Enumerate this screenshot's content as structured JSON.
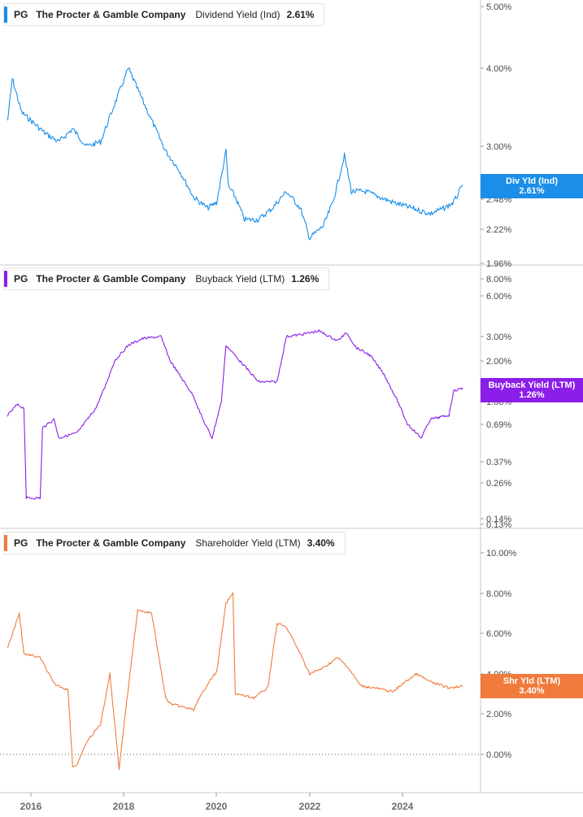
{
  "chart_data": [
    {
      "type": "line",
      "legend": {
        "ticker": "PG",
        "company": "The Procter & Gamble Company",
        "metric": "Dividend Yield (Ind)",
        "value": "2.61%"
      },
      "flag": {
        "label": "Div Yld (Ind)",
        "value": "2.61%"
      },
      "color": "#1a8ee8",
      "y_scale": "log",
      "y_ticks": [
        "5.00%",
        "4.00%",
        "3.00%",
        "2.48%",
        "2.22%",
        "1.96%"
      ],
      "x": [
        2015.5,
        2015.6,
        2015.8,
        2016.0,
        2016.3,
        2016.6,
        2016.9,
        2017.2,
        2017.5,
        2017.8,
        2018.1,
        2018.3,
        2018.6,
        2018.9,
        2019.2,
        2019.5,
        2019.8,
        2020.0,
        2020.2,
        2020.25,
        2020.4,
        2020.6,
        2020.9,
        2021.2,
        2021.5,
        2021.8,
        2022.0,
        2022.3,
        2022.5,
        2022.75,
        2022.9,
        2023.2,
        2023.5,
        2023.8,
        2024.2,
        2024.6,
        2024.9,
        2025.1,
        2025.3
      ],
      "y": [
        3.3,
        3.85,
        3.4,
        3.3,
        3.15,
        3.05,
        3.2,
        3.0,
        3.05,
        3.5,
        4.0,
        3.7,
        3.3,
        2.95,
        2.75,
        2.5,
        2.4,
        2.45,
        2.95,
        2.6,
        2.5,
        2.3,
        2.3,
        2.4,
        2.55,
        2.4,
        2.15,
        2.25,
        2.45,
        2.9,
        2.55,
        2.55,
        2.5,
        2.45,
        2.4,
        2.35,
        2.4,
        2.45,
        2.61
      ]
    },
    {
      "type": "line",
      "legend": {
        "ticker": "PG",
        "company": "The Procter & Gamble Company",
        "metric": "Buyback Yield (LTM)",
        "value": "1.26%"
      },
      "flag": {
        "label": "Buyback Yield (LTM)",
        "value": "1.26%"
      },
      "color": "#8b1ee8",
      "y_scale": "log",
      "y_ticks": [
        "8.00%",
        "6.00%",
        "3.00%",
        "2.00%",
        "1.00%",
        "0.69%",
        "0.37%",
        "0.26%",
        "0.14%",
        "0.13%"
      ],
      "x": [
        2015.5,
        2015.7,
        2015.85,
        2015.9,
        2016.2,
        2016.25,
        2016.5,
        2016.6,
        2017.0,
        2017.4,
        2017.6,
        2017.8,
        2018.1,
        2018.4,
        2018.8,
        2019.0,
        2019.5,
        2019.7,
        2019.9,
        2020.1,
        2020.2,
        2020.5,
        2020.9,
        2021.3,
        2021.5,
        2021.8,
        2022.2,
        2022.6,
        2022.8,
        2023.0,
        2023.3,
        2023.6,
        2023.9,
        2024.1,
        2024.4,
        2024.6,
        2025.0,
        2025.1,
        2025.3
      ],
      "y": [
        0.8,
        0.95,
        0.9,
        0.2,
        0.2,
        0.65,
        0.75,
        0.55,
        0.6,
        0.9,
        1.3,
        2.0,
        2.6,
        2.9,
        3.0,
        2.0,
        1.1,
        0.75,
        0.55,
        1.0,
        2.6,
        2.0,
        1.4,
        1.4,
        3.0,
        3.1,
        3.3,
        2.8,
        3.2,
        2.5,
        2.2,
        1.6,
        1.0,
        0.7,
        0.55,
        0.75,
        0.8,
        1.2,
        1.26
      ]
    },
    {
      "type": "line",
      "legend": {
        "ticker": "PG",
        "company": "The Procter & Gamble Company",
        "metric": "Shareholder Yield (LTM)",
        "value": "3.40%"
      },
      "flag": {
        "label": "Shr Yld (LTM)",
        "value": "3.40%"
      },
      "color": "#f07b3c",
      "y_scale": "linear",
      "y_ticks": [
        "10.00%",
        "8.00%",
        "6.00%",
        "4.00%",
        "2.00%",
        "0.00%"
      ],
      "x": [
        2015.5,
        2015.75,
        2015.85,
        2016.2,
        2016.5,
        2016.8,
        2016.9,
        2017.0,
        2017.2,
        2017.5,
        2017.7,
        2017.9,
        2018.0,
        2018.3,
        2018.6,
        2018.9,
        2019.0,
        2019.5,
        2019.8,
        2020.0,
        2020.2,
        2020.35,
        2020.4,
        2020.8,
        2021.1,
        2021.3,
        2021.5,
        2021.8,
        2022.0,
        2022.3,
        2022.6,
        2022.8,
        2023.1,
        2023.4,
        2023.8,
        2024.0,
        2024.3,
        2024.6,
        2025.0,
        2025.3
      ],
      "y": [
        5.3,
        7.0,
        5.0,
        4.8,
        3.5,
        3.2,
        -0.6,
        -0.5,
        0.6,
        1.5,
        4.0,
        -0.7,
        1.4,
        7.2,
        7.0,
        2.8,
        2.5,
        2.2,
        3.5,
        4.1,
        7.5,
        8.0,
        3.0,
        2.8,
        3.3,
        6.5,
        6.3,
        5.0,
        4.0,
        4.3,
        4.8,
        4.4,
        3.4,
        3.3,
        3.1,
        3.5,
        4.0,
        3.6,
        3.3,
        3.4
      ]
    }
  ],
  "x_axis": {
    "labels": [
      "2016",
      "2018",
      "2020",
      "2022",
      "2024"
    ]
  }
}
